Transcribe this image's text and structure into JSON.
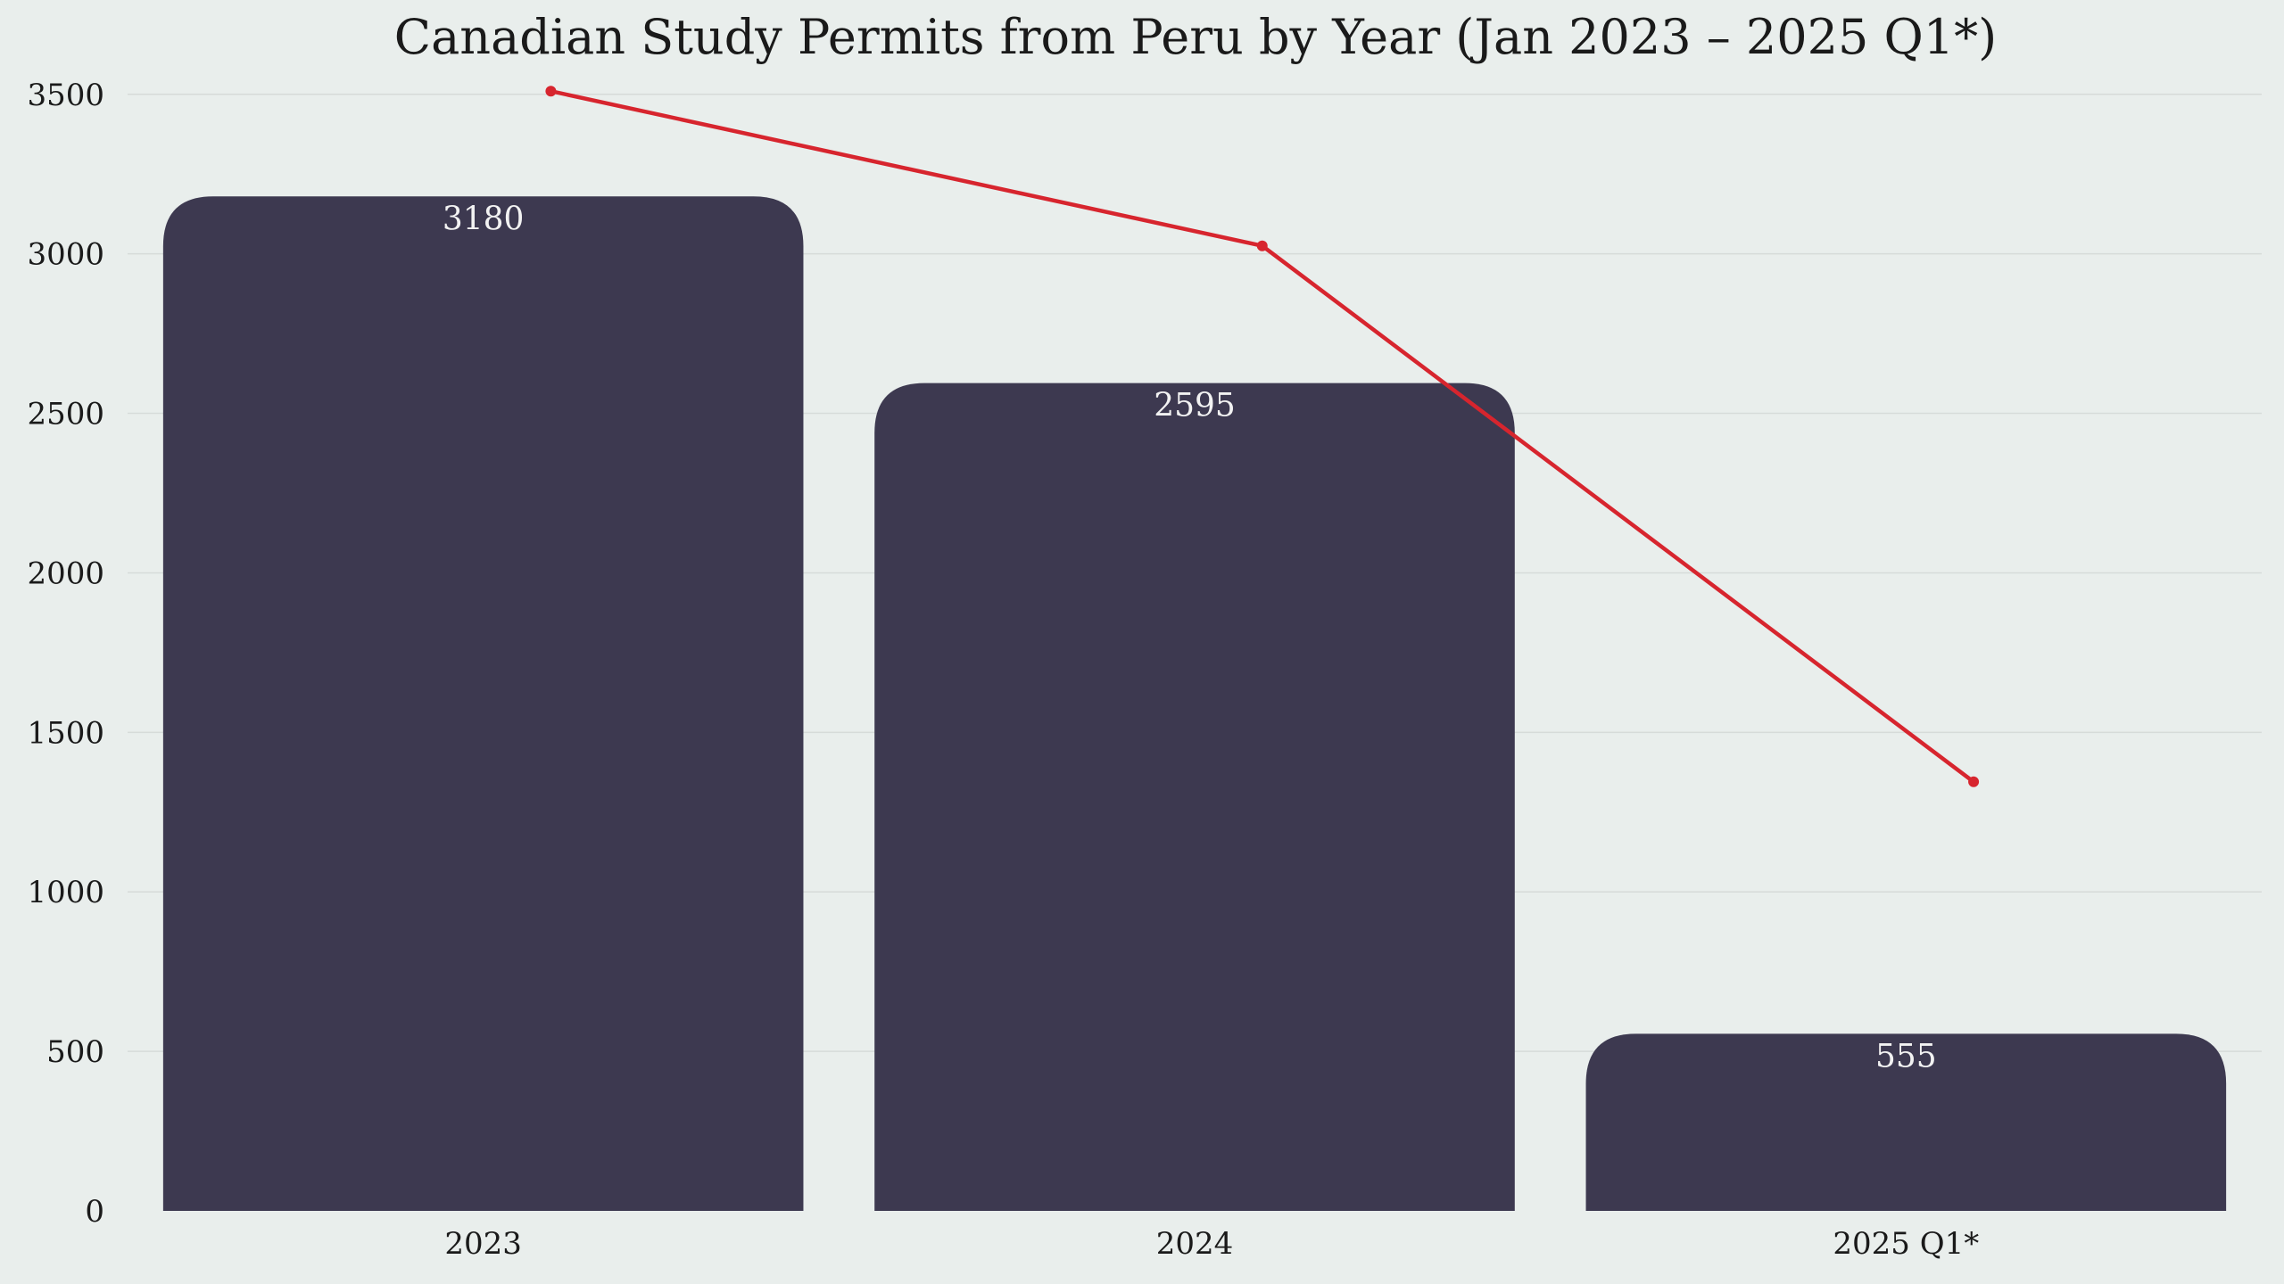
{
  "chart_data": {
    "type": "bar",
    "title": "Canadian Study Permits from Peru by Year (Jan 2023 – 2025 Q1*)",
    "xlabel": "",
    "ylabel": "",
    "categories": [
      "2023",
      "2024",
      "2025 Q1*"
    ],
    "series": [
      {
        "values": [
          3180,
          2595,
          555
        ],
        "color": "#3d3950"
      }
    ],
    "line_series": [
      {
        "values": [
          3510,
          3025,
          1345
        ],
        "color": "#d7252e"
      }
    ],
    "ylim": [
      0,
      3600
    ],
    "yticks": [
      0,
      500,
      1000,
      1500,
      2000,
      2500,
      3000,
      3500
    ],
    "data_labels": [
      "3180",
      "2595",
      "555"
    ],
    "grid": true,
    "legend": "none",
    "background": "#e9eeec"
  }
}
